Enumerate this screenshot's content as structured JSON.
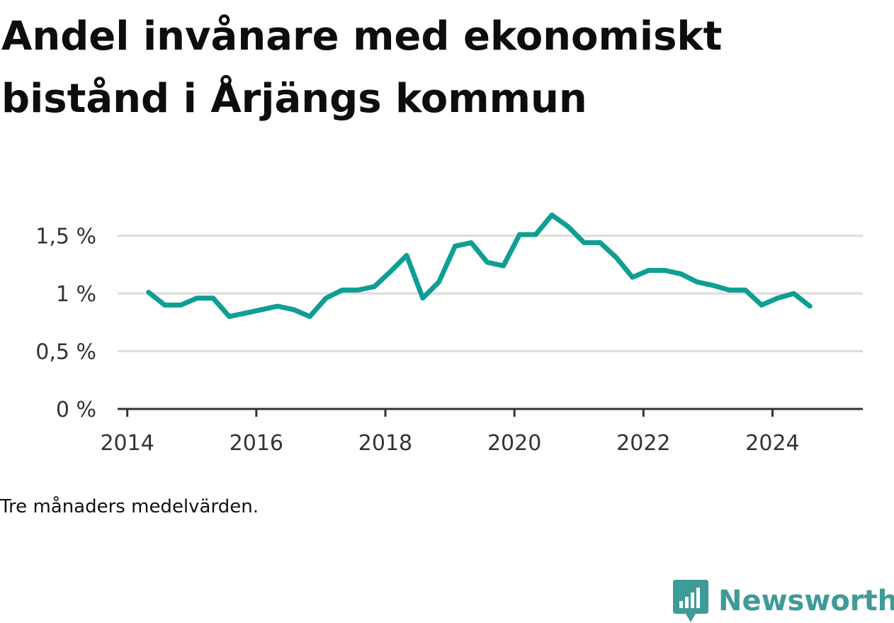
{
  "title": "Andel invånare med ekonomiskt bistånd i Årjängs kommun",
  "note": "Tre månaders medelvärden.",
  "brand": {
    "name": "Newsworthy",
    "icon": "bar-chart-bubble-icon",
    "color": "#3f9b98"
  },
  "chart_data": {
    "type": "line",
    "title": "Andel invånare med ekonomiskt bistånd i Årjängs kommun",
    "xlabel": "",
    "ylabel": "",
    "xlim": [
      2013.85,
      2025.4
    ],
    "ylim": [
      0,
      1.7
    ],
    "grid": true,
    "y_ticks": [
      {
        "value": 0,
        "label": "0 %"
      },
      {
        "value": 0.5,
        "label": "0,5 %"
      },
      {
        "value": 1,
        "label": "1 %"
      },
      {
        "value": 1.5,
        "label": "1,5 %"
      }
    ],
    "x_ticks": [
      {
        "value": 2014,
        "label": "2014"
      },
      {
        "value": 2016,
        "label": "2016"
      },
      {
        "value": 2018,
        "label": "2018"
      },
      {
        "value": 2020,
        "label": "2020"
      },
      {
        "value": 2022,
        "label": "2022"
      },
      {
        "value": 2024,
        "label": "2024"
      }
    ],
    "series": [
      {
        "color": "#0f9e94",
        "points": [
          [
            2014.33,
            1.01
          ],
          [
            2014.58,
            0.9
          ],
          [
            2014.83,
            0.9
          ],
          [
            2015.08,
            0.96
          ],
          [
            2015.33,
            0.96
          ],
          [
            2015.58,
            0.8
          ],
          [
            2015.83,
            0.83
          ],
          [
            2016.08,
            0.86
          ],
          [
            2016.33,
            0.89
          ],
          [
            2016.58,
            0.86
          ],
          [
            2016.83,
            0.8
          ],
          [
            2017.08,
            0.96
          ],
          [
            2017.33,
            1.03
          ],
          [
            2017.58,
            1.03
          ],
          [
            2017.83,
            1.06
          ],
          [
            2018.08,
            1.19
          ],
          [
            2018.33,
            1.33
          ],
          [
            2018.58,
            0.96
          ],
          [
            2018.83,
            1.1
          ],
          [
            2019.08,
            1.41
          ],
          [
            2019.33,
            1.44
          ],
          [
            2019.58,
            1.27
          ],
          [
            2019.83,
            1.24
          ],
          [
            2020.08,
            1.51
          ],
          [
            2020.33,
            1.51
          ],
          [
            2020.58,
            1.68
          ],
          [
            2020.83,
            1.58
          ],
          [
            2021.08,
            1.44
          ],
          [
            2021.33,
            1.44
          ],
          [
            2021.58,
            1.31
          ],
          [
            2021.83,
            1.14
          ],
          [
            2022.08,
            1.2
          ],
          [
            2022.33,
            1.2
          ],
          [
            2022.58,
            1.17
          ],
          [
            2022.83,
            1.1
          ],
          [
            2023.08,
            1.07
          ],
          [
            2023.33,
            1.03
          ],
          [
            2023.58,
            1.03
          ],
          [
            2023.83,
            0.9
          ],
          [
            2024.08,
            0.96
          ],
          [
            2024.33,
            1.0
          ],
          [
            2024.58,
            0.89
          ]
        ]
      }
    ]
  }
}
